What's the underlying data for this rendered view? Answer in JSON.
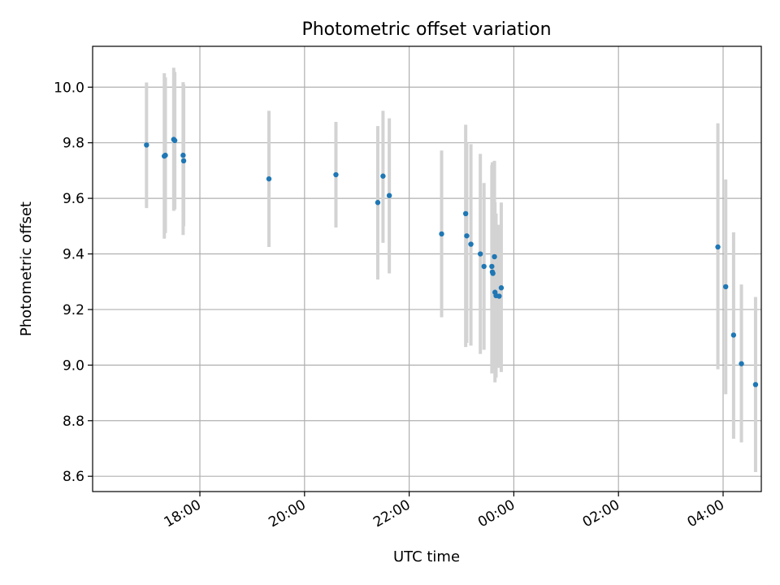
{
  "chart_data": {
    "type": "scatter",
    "title": "Photometric offset variation",
    "xlabel": "UTC time",
    "ylabel": "Photometric offset",
    "x_unit": "hours since 00:00 UTC (negative = previous day)",
    "xlim": [
      -8.05,
      4.73
    ],
    "ylim": [
      8.545,
      10.147
    ],
    "xticks": [
      {
        "value": -6,
        "label": "18:00"
      },
      {
        "value": -4,
        "label": "20:00"
      },
      {
        "value": -2,
        "label": "22:00"
      },
      {
        "value": 0,
        "label": "00:00"
      },
      {
        "value": 2,
        "label": "02:00"
      },
      {
        "value": 4,
        "label": "04:00"
      }
    ],
    "yticks": [
      {
        "value": 8.6,
        "label": "8.6"
      },
      {
        "value": 8.8,
        "label": "8.8"
      },
      {
        "value": 9.0,
        "label": "9.0"
      },
      {
        "value": 9.2,
        "label": "9.2"
      },
      {
        "value": 9.4,
        "label": "9.4"
      },
      {
        "value": 9.6,
        "label": "9.6"
      },
      {
        "value": 9.8,
        "label": "9.8"
      },
      {
        "value": 10.0,
        "label": "10.0"
      }
    ],
    "grid": true,
    "series": [
      {
        "name": "Photometric offset",
        "marker_color": "#1f77b4",
        "errorbar_color": "#d3d3d3",
        "points": [
          {
            "x": -7.02,
            "y": 9.792,
            "lo": 9.565,
            "hi": 10.017
          },
          {
            "x": -6.68,
            "y": 9.752,
            "lo": 9.455,
            "hi": 10.05
          },
          {
            "x": -6.66,
            "y": 9.755,
            "lo": 9.475,
            "hi": 10.035
          },
          {
            "x": -6.5,
            "y": 9.812,
            "lo": 9.555,
            "hi": 10.07
          },
          {
            "x": -6.48,
            "y": 9.808,
            "lo": 9.56,
            "hi": 10.055
          },
          {
            "x": -6.32,
            "y": 9.755,
            "lo": 9.468,
            "hi": 10.018
          },
          {
            "x": -6.31,
            "y": 9.735,
            "lo": 9.5,
            "hi": 10.01
          },
          {
            "x": -4.68,
            "y": 9.67,
            "lo": 9.425,
            "hi": 9.915
          },
          {
            "x": -3.4,
            "y": 9.685,
            "lo": 9.495,
            "hi": 9.875
          },
          {
            "x": -2.6,
            "y": 9.585,
            "lo": 9.308,
            "hi": 9.86
          },
          {
            "x": -2.5,
            "y": 9.68,
            "lo": 9.44,
            "hi": 9.915
          },
          {
            "x": -2.38,
            "y": 9.61,
            "lo": 9.33,
            "hi": 9.888
          },
          {
            "x": -1.38,
            "y": 9.472,
            "lo": 9.172,
            "hi": 9.772
          },
          {
            "x": -0.92,
            "y": 9.545,
            "lo": 9.065,
            "hi": 9.865
          },
          {
            "x": -0.9,
            "y": 9.465,
            "lo": 9.08,
            "hi": 9.8
          },
          {
            "x": -0.82,
            "y": 9.435,
            "lo": 9.07,
            "hi": 9.795
          },
          {
            "x": -0.64,
            "y": 9.4,
            "lo": 9.04,
            "hi": 9.76
          },
          {
            "x": -0.57,
            "y": 9.355,
            "lo": 9.055,
            "hi": 9.655
          },
          {
            "x": -0.42,
            "y": 9.355,
            "lo": 8.97,
            "hi": 9.72
          },
          {
            "x": -0.41,
            "y": 9.335,
            "lo": 8.985,
            "hi": 9.73
          },
          {
            "x": -0.4,
            "y": 9.33,
            "lo": 8.99,
            "hi": 9.7
          },
          {
            "x": -0.37,
            "y": 9.39,
            "lo": 9.0,
            "hi": 9.735
          },
          {
            "x": -0.36,
            "y": 9.262,
            "lo": 8.938,
            "hi": 9.586
          },
          {
            "x": -0.34,
            "y": 9.25,
            "lo": 8.955,
            "hi": 9.545
          },
          {
            "x": -0.28,
            "y": 9.248,
            "lo": 8.99,
            "hi": 9.505
          },
          {
            "x": -0.24,
            "y": 9.278,
            "lo": 8.975,
            "hi": 9.585
          },
          {
            "x": 3.9,
            "y": 9.425,
            "lo": 8.985,
            "hi": 9.87
          },
          {
            "x": 4.05,
            "y": 9.282,
            "lo": 8.895,
            "hi": 9.668
          },
          {
            "x": 4.2,
            "y": 9.108,
            "lo": 8.735,
            "hi": 9.478
          },
          {
            "x": 4.35,
            "y": 9.005,
            "lo": 8.722,
            "hi": 9.29
          },
          {
            "x": 4.62,
            "y": 8.93,
            "lo": 8.615,
            "hi": 9.245
          }
        ]
      }
    ]
  }
}
